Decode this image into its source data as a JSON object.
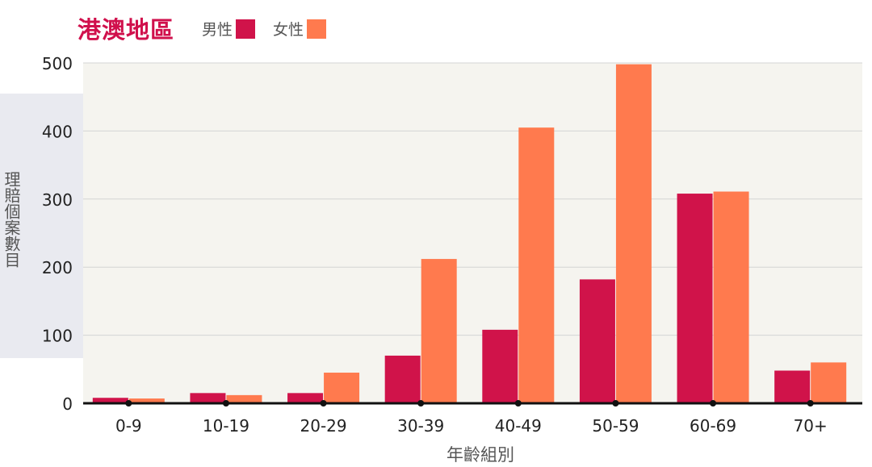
{
  "chart_data": {
    "type": "bar",
    "title": "港澳地區",
    "xlabel": "年齡組別",
    "ylabel": "理賠個案數目",
    "categories": [
      "0-9",
      "10-19",
      "20-29",
      "30-39",
      "40-49",
      "50-59",
      "60-69",
      "70+"
    ],
    "series": [
      {
        "name": "男性",
        "color": "#d0134a",
        "values": [
          8,
          15,
          15,
          70,
          108,
          182,
          308,
          48
        ]
      },
      {
        "name": "女性",
        "color": "#ff7a4e",
        "values": [
          7,
          12,
          45,
          212,
          405,
          498,
          311,
          60
        ]
      }
    ],
    "ylim": [
      0,
      500
    ],
    "yticks": [
      0,
      100,
      200,
      300,
      400,
      500
    ],
    "grid": true,
    "legend_position": "top"
  }
}
